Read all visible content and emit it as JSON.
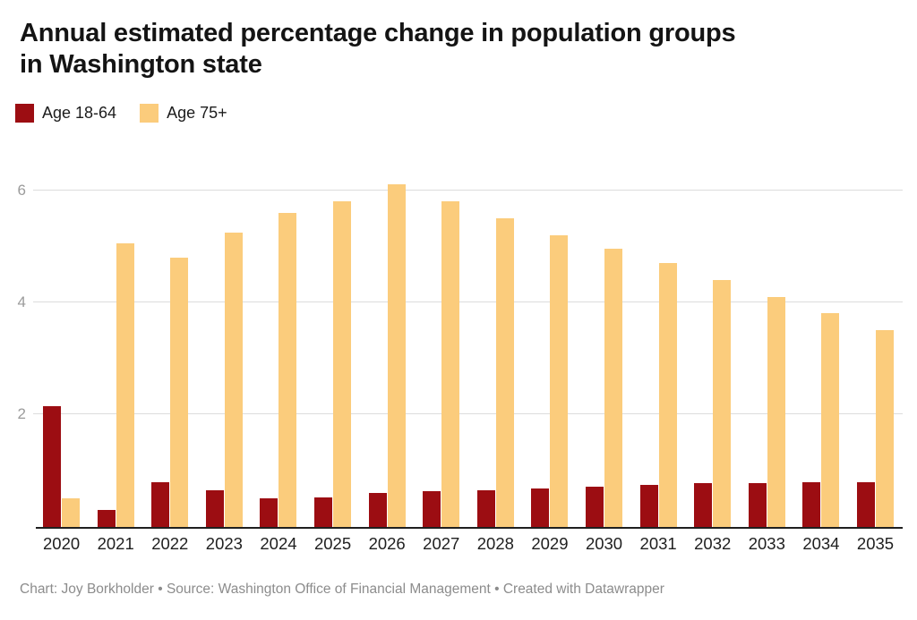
{
  "title": {
    "line1": "Annual estimated percentage change in population groups",
    "line2": "in Washington state"
  },
  "legend": [
    {
      "label": "Age 18-64",
      "color": "#9c0d12"
    },
    {
      "label": "Age 75+",
      "color": "#fbcc7c"
    }
  ],
  "footer": "Chart: Joy Borkholder • Source: Washington Office of Financial Management • Created with Datawrapper",
  "colors": {
    "series_age_18_64": "#9c0d12",
    "series_age_75_plus": "#fbcc7c",
    "gridline": "#dcdcdc",
    "axis_line": "#1f1f1f",
    "y_tick_text": "#9b9b9b",
    "x_tick_text": "#1f1f1f",
    "title_text": "#141414",
    "footer_text": "#8c8c8c"
  },
  "chart_data": {
    "type": "bar",
    "title": "Annual estimated percentage change in population groups in Washington state",
    "categories": [
      "2020",
      "2021",
      "2022",
      "2023",
      "2024",
      "2025",
      "2026",
      "2027",
      "2028",
      "2029",
      "2030",
      "2031",
      "2032",
      "2033",
      "2034",
      "2035"
    ],
    "series": [
      {
        "name": "Age 18-64",
        "color": "#9c0d12",
        "values": [
          2.15,
          0.3,
          0.8,
          0.65,
          0.5,
          0.52,
          0.6,
          0.63,
          0.65,
          0.68,
          0.72,
          0.75,
          0.77,
          0.78,
          0.79,
          0.79
        ]
      },
      {
        "name": "Age 75+",
        "color": "#fbcc7c",
        "values": [
          0.5,
          5.05,
          4.8,
          5.25,
          5.6,
          5.8,
          6.1,
          5.8,
          5.5,
          5.2,
          4.95,
          4.7,
          4.4,
          4.1,
          3.8,
          3.5
        ]
      }
    ],
    "xlabel": "",
    "ylabel": "",
    "ylim": [
      0,
      6.4
    ],
    "yticks": [
      2,
      4,
      6
    ],
    "grid": true,
    "legend_position": "top-left",
    "bar_layout": "grouped"
  }
}
